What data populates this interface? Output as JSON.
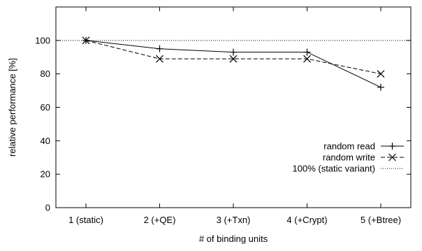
{
  "chart_data": {
    "type": "line",
    "title": "",
    "xlabel": "# of binding units",
    "ylabel": "relative performance [%]",
    "categories": [
      "1 (static)",
      "2 (+QE)",
      "3 (+Txn)",
      "4 (+Crypt)",
      "5 (+Btree)"
    ],
    "ylim": [
      0,
      120
    ],
    "yticks": [
      0,
      20,
      40,
      60,
      80,
      100
    ],
    "grid": false,
    "legend_position": "bottom-right",
    "series": [
      {
        "name": "random read",
        "line_style": "solid",
        "marker": "plus",
        "values": [
          100,
          95,
          93,
          93,
          72
        ]
      },
      {
        "name": "random write",
        "line_style": "dashed",
        "marker": "cross",
        "values": [
          100,
          89,
          89,
          89,
          80
        ]
      }
    ],
    "reference_lines": [
      {
        "name": "100% (static variant)",
        "line_style": "dotted",
        "value": 100
      }
    ]
  }
}
